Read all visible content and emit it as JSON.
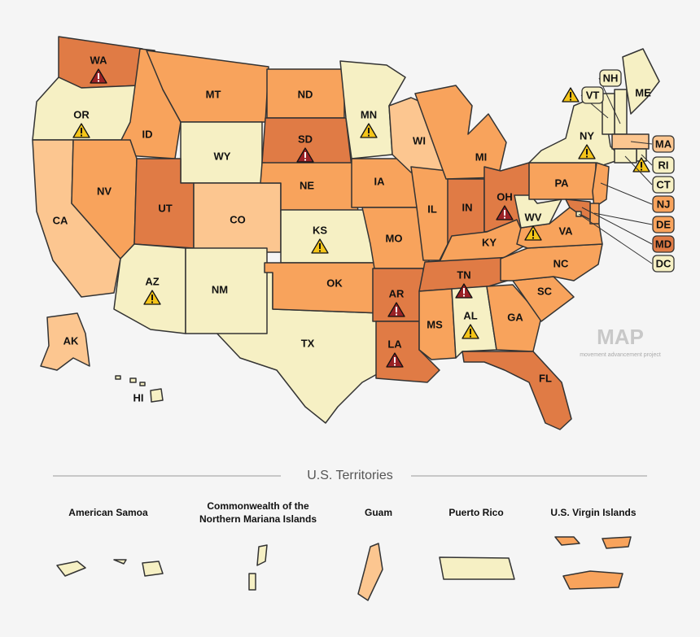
{
  "map": {
    "states": [
      {
        "label": "TX",
        "color": "#f6f0c4"
      },
      {
        "label": "WA",
        "color": "#e07b45",
        "icon": "danger"
      },
      {
        "label": "OR",
        "color": "#f6f0c4",
        "icon": "caution"
      },
      {
        "label": "CA",
        "color": "#fcc690"
      },
      {
        "label": "ID",
        "color": "#f8a35c"
      },
      {
        "label": "NV",
        "color": "#f8a35c"
      },
      {
        "label": "MT",
        "color": "#f8a35c"
      },
      {
        "label": "WY",
        "color": "#f6f0c4"
      },
      {
        "label": "UT",
        "color": "#e07b45"
      },
      {
        "label": "CO",
        "color": "#fcc690"
      },
      {
        "label": "AZ",
        "color": "#f6f0c4",
        "icon": "caution"
      },
      {
        "label": "NM",
        "color": "#f6f0c4"
      },
      {
        "label": "ND",
        "color": "#f8a35c"
      },
      {
        "label": "SD",
        "color": "#e07b45",
        "icon": "danger"
      },
      {
        "label": "NE",
        "color": "#f8a35c"
      },
      {
        "label": "KS",
        "color": "#f6f0c4",
        "icon": "caution"
      },
      {
        "label": "OK",
        "color": "#f8a35c"
      },
      {
        "label": "MN",
        "color": "#f6f0c4",
        "icon": "caution"
      },
      {
        "label": "IA",
        "color": "#f8a35c"
      },
      {
        "label": "MO",
        "color": "#f8a35c"
      },
      {
        "label": "AR",
        "color": "#e07b45",
        "icon": "danger"
      },
      {
        "label": "LA",
        "color": "#e07b45",
        "icon": "danger"
      },
      {
        "label": "WI",
        "color": "#fcc690"
      },
      {
        "label": "IL",
        "color": "#f8a35c"
      },
      {
        "label": "MI",
        "color": "#f8a35c"
      },
      {
        "label": "IN",
        "color": "#e07b45"
      },
      {
        "label": "OH",
        "color": "#e07b45",
        "icon": "danger"
      },
      {
        "label": "KY",
        "color": "#f8a35c"
      },
      {
        "label": "TN",
        "color": "#e07b45",
        "icon": "danger"
      },
      {
        "label": "MS",
        "color": "#f8a35c"
      },
      {
        "label": "AL",
        "color": "#f6f0c4",
        "icon": "caution"
      },
      {
        "label": "GA",
        "color": "#f8a35c"
      },
      {
        "label": "FL",
        "color": "#e07b45"
      },
      {
        "label": "SC",
        "color": "#f8a35c"
      },
      {
        "label": "NC",
        "color": "#f8a35c"
      },
      {
        "label": "VA",
        "color": "#f8a35c"
      },
      {
        "label": "WV",
        "color": "#f6f0c4",
        "icon": "caution"
      },
      {
        "label": "PA",
        "color": "#f8a35c"
      },
      {
        "label": "NY",
        "color": "#f6f0c4",
        "icon": "caution"
      },
      {
        "label": "ME",
        "color": "#f6f0c4"
      },
      {
        "label": "NH",
        "color": "#f6f0c4"
      },
      {
        "label": "VT",
        "color": "#f6f0c4",
        "icon": "caution"
      },
      {
        "label": "MA",
        "color": "#fcc690"
      },
      {
        "label": "RI",
        "color": "#f6f0c4",
        "icon": "caution"
      },
      {
        "label": "CT",
        "color": "#f6f0c4"
      },
      {
        "label": "NJ",
        "color": "#f8a35c"
      },
      {
        "label": "DE",
        "color": "#f8a35c"
      },
      {
        "label": "MD",
        "color": "#e07b45"
      },
      {
        "label": "DC",
        "color": "#f6f0c4"
      },
      {
        "label": "AK",
        "color": "#fcc690"
      },
      {
        "label": "HI",
        "color": "#f6f0c4"
      }
    ]
  },
  "logo": {
    "title": "MAP",
    "subtitle": "movement advancement project"
  },
  "territories": {
    "title": "U.S. Territories",
    "items": [
      {
        "name_lines": [
          "American Samoa"
        ],
        "color": "#f6f0c4"
      },
      {
        "name_lines": [
          "Commonwealth of the",
          "Northern Mariana Islands"
        ],
        "color": "#f6f0c4"
      },
      {
        "name_lines": [
          "Guam"
        ],
        "color": "#fcc690"
      },
      {
        "name_lines": [
          "Puerto Rico"
        ],
        "color": "#f6f0c4"
      },
      {
        "name_lines": [
          "U.S. Virgin Islands"
        ],
        "color": "#f8a35c"
      }
    ]
  }
}
